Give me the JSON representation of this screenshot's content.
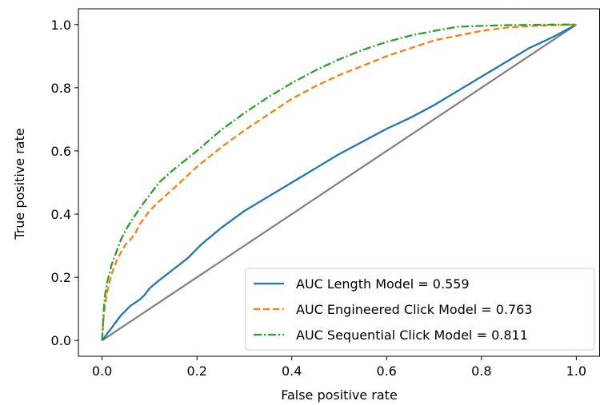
{
  "chart_data": {
    "type": "line",
    "title": "",
    "xlabel": "False positive rate",
    "ylabel": "True positive rate",
    "xlim": [
      -0.05,
      1.05
    ],
    "ylim": [
      -0.05,
      1.05
    ],
    "xticks": [
      0.0,
      0.2,
      0.4,
      0.6,
      0.8,
      1.0
    ],
    "yticks": [
      0.0,
      0.2,
      0.4,
      0.6,
      0.8,
      1.0
    ],
    "tick_labels": [
      "0.0",
      "0.2",
      "0.4",
      "0.6",
      "0.8",
      "1.0"
    ],
    "grid": false,
    "legend_position": "bottom-right",
    "reference_line": {
      "color": "#7f7f7f",
      "x": [
        0,
        1
      ],
      "y": [
        0,
        1
      ]
    },
    "series": [
      {
        "name": "AUC Length Model = 0.559",
        "color": "#1f77b4",
        "style": "solid",
        "x": [
          0,
          0.005,
          0.01,
          0.02,
          0.03,
          0.04,
          0.05,
          0.06,
          0.07,
          0.08,
          0.09,
          0.1,
          0.12,
          0.15,
          0.18,
          0.21,
          0.25,
          0.3,
          0.35,
          0.4,
          0.45,
          0.5,
          0.55,
          0.6,
          0.65,
          0.7,
          0.75,
          0.8,
          0.85,
          0.9,
          0.95,
          1.0
        ],
        "y": [
          0,
          0.01,
          0.02,
          0.04,
          0.06,
          0.08,
          0.095,
          0.11,
          0.12,
          0.13,
          0.145,
          0.165,
          0.19,
          0.225,
          0.26,
          0.305,
          0.355,
          0.41,
          0.455,
          0.5,
          0.545,
          0.59,
          0.63,
          0.67,
          0.705,
          0.745,
          0.79,
          0.835,
          0.88,
          0.925,
          0.96,
          1.0
        ]
      },
      {
        "name": "AUC Engineered Click Model = 0.763",
        "color": "#ff7f0e",
        "style": "dashed",
        "x": [
          0,
          0.003,
          0.006,
          0.01,
          0.015,
          0.02,
          0.03,
          0.04,
          0.05,
          0.06,
          0.07,
          0.08,
          0.1,
          0.12,
          0.15,
          0.2,
          0.25,
          0.3,
          0.35,
          0.4,
          0.45,
          0.5,
          0.55,
          0.6,
          0.65,
          0.7,
          0.75,
          0.8,
          0.85,
          0.9,
          0.95,
          1.0
        ],
        "y": [
          0,
          0.07,
          0.11,
          0.15,
          0.18,
          0.21,
          0.25,
          0.28,
          0.305,
          0.32,
          0.34,
          0.37,
          0.41,
          0.44,
          0.48,
          0.55,
          0.61,
          0.665,
          0.715,
          0.765,
          0.805,
          0.84,
          0.87,
          0.9,
          0.925,
          0.95,
          0.965,
          0.98,
          0.99,
          0.995,
          0.998,
          1.0
        ]
      },
      {
        "name": "AUC Sequential Click Model = 0.811",
        "color": "#2ca02c",
        "style": "dashdot",
        "x": [
          0,
          0.003,
          0.006,
          0.01,
          0.015,
          0.02,
          0.03,
          0.04,
          0.05,
          0.06,
          0.08,
          0.1,
          0.12,
          0.15,
          0.2,
          0.25,
          0.3,
          0.35,
          0.4,
          0.45,
          0.5,
          0.55,
          0.6,
          0.65,
          0.7,
          0.75,
          0.8,
          0.85,
          0.9,
          0.95,
          1.0
        ],
        "y": [
          0,
          0.09,
          0.14,
          0.18,
          0.21,
          0.24,
          0.28,
          0.32,
          0.35,
          0.375,
          0.42,
          0.46,
          0.5,
          0.54,
          0.6,
          0.665,
          0.72,
          0.77,
          0.815,
          0.855,
          0.89,
          0.92,
          0.945,
          0.965,
          0.98,
          0.993,
          0.996,
          0.998,
          0.999,
          1.0,
          1.0
        ]
      }
    ]
  }
}
